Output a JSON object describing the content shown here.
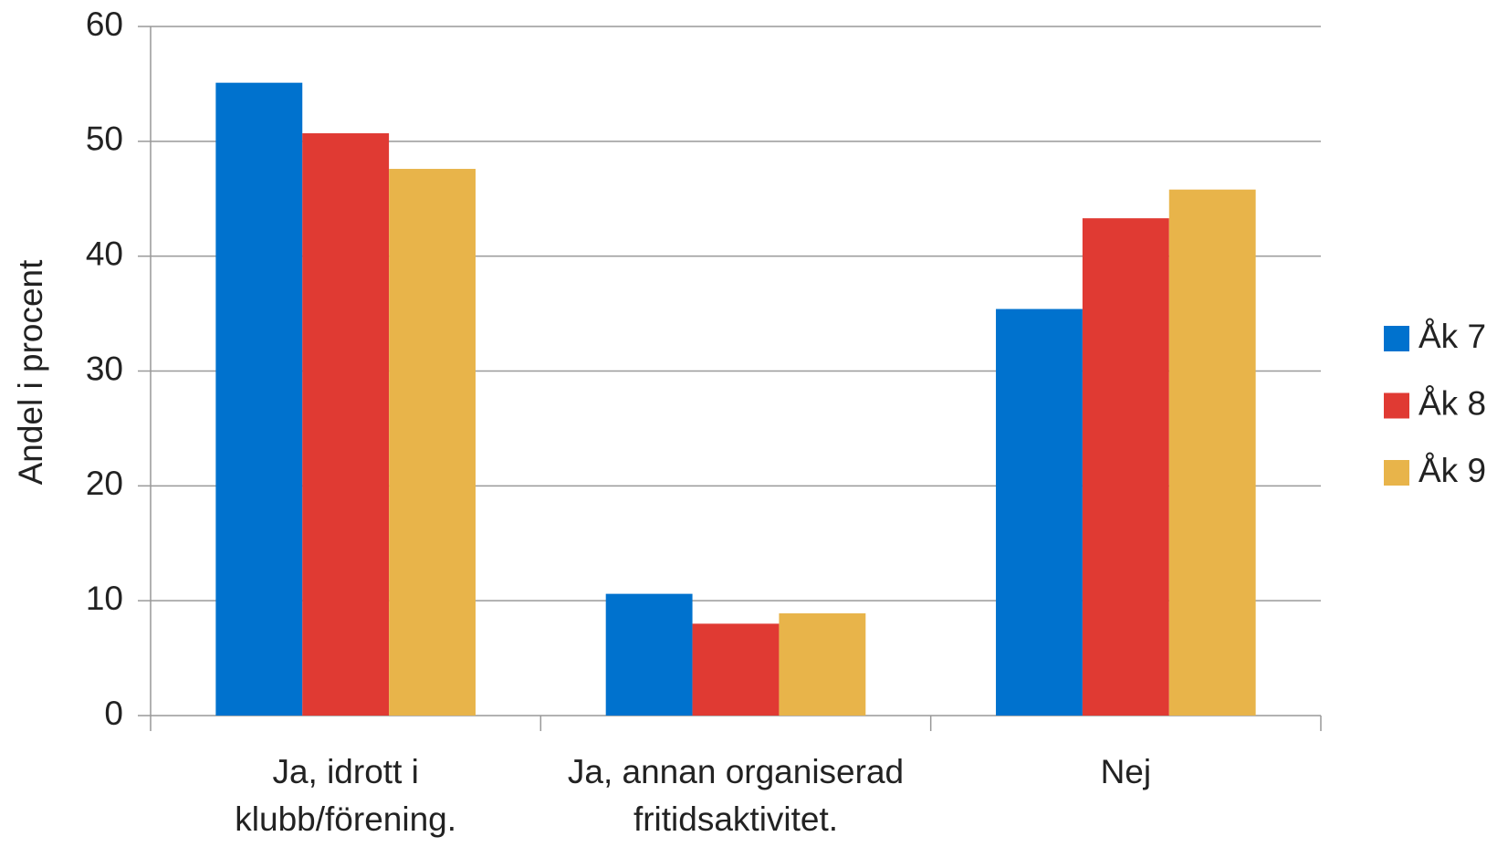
{
  "chart_data": {
    "type": "bar",
    "y_label": "Andel i procent",
    "categories": [
      "Ja, idrott i\nklubb/förening.",
      "Ja, annan organiserad\nfritidsaktivitet.",
      "Nej"
    ],
    "series": [
      {
        "name": "Åk 7",
        "color": "#0072ce",
        "values": [
          55.1,
          10.6,
          35.4
        ]
      },
      {
        "name": "Åk 8",
        "color": "#e03a33",
        "values": [
          50.7,
          8.0,
          43.3
        ]
      },
      {
        "name": "Åk 9",
        "color": "#e8b44a",
        "values": [
          47.6,
          8.9,
          45.8
        ]
      }
    ],
    "ylim": [
      0,
      60
    ],
    "yticks": [
      0,
      10,
      20,
      30,
      40,
      50,
      60
    ],
    "grid": true,
    "legend": "right"
  }
}
